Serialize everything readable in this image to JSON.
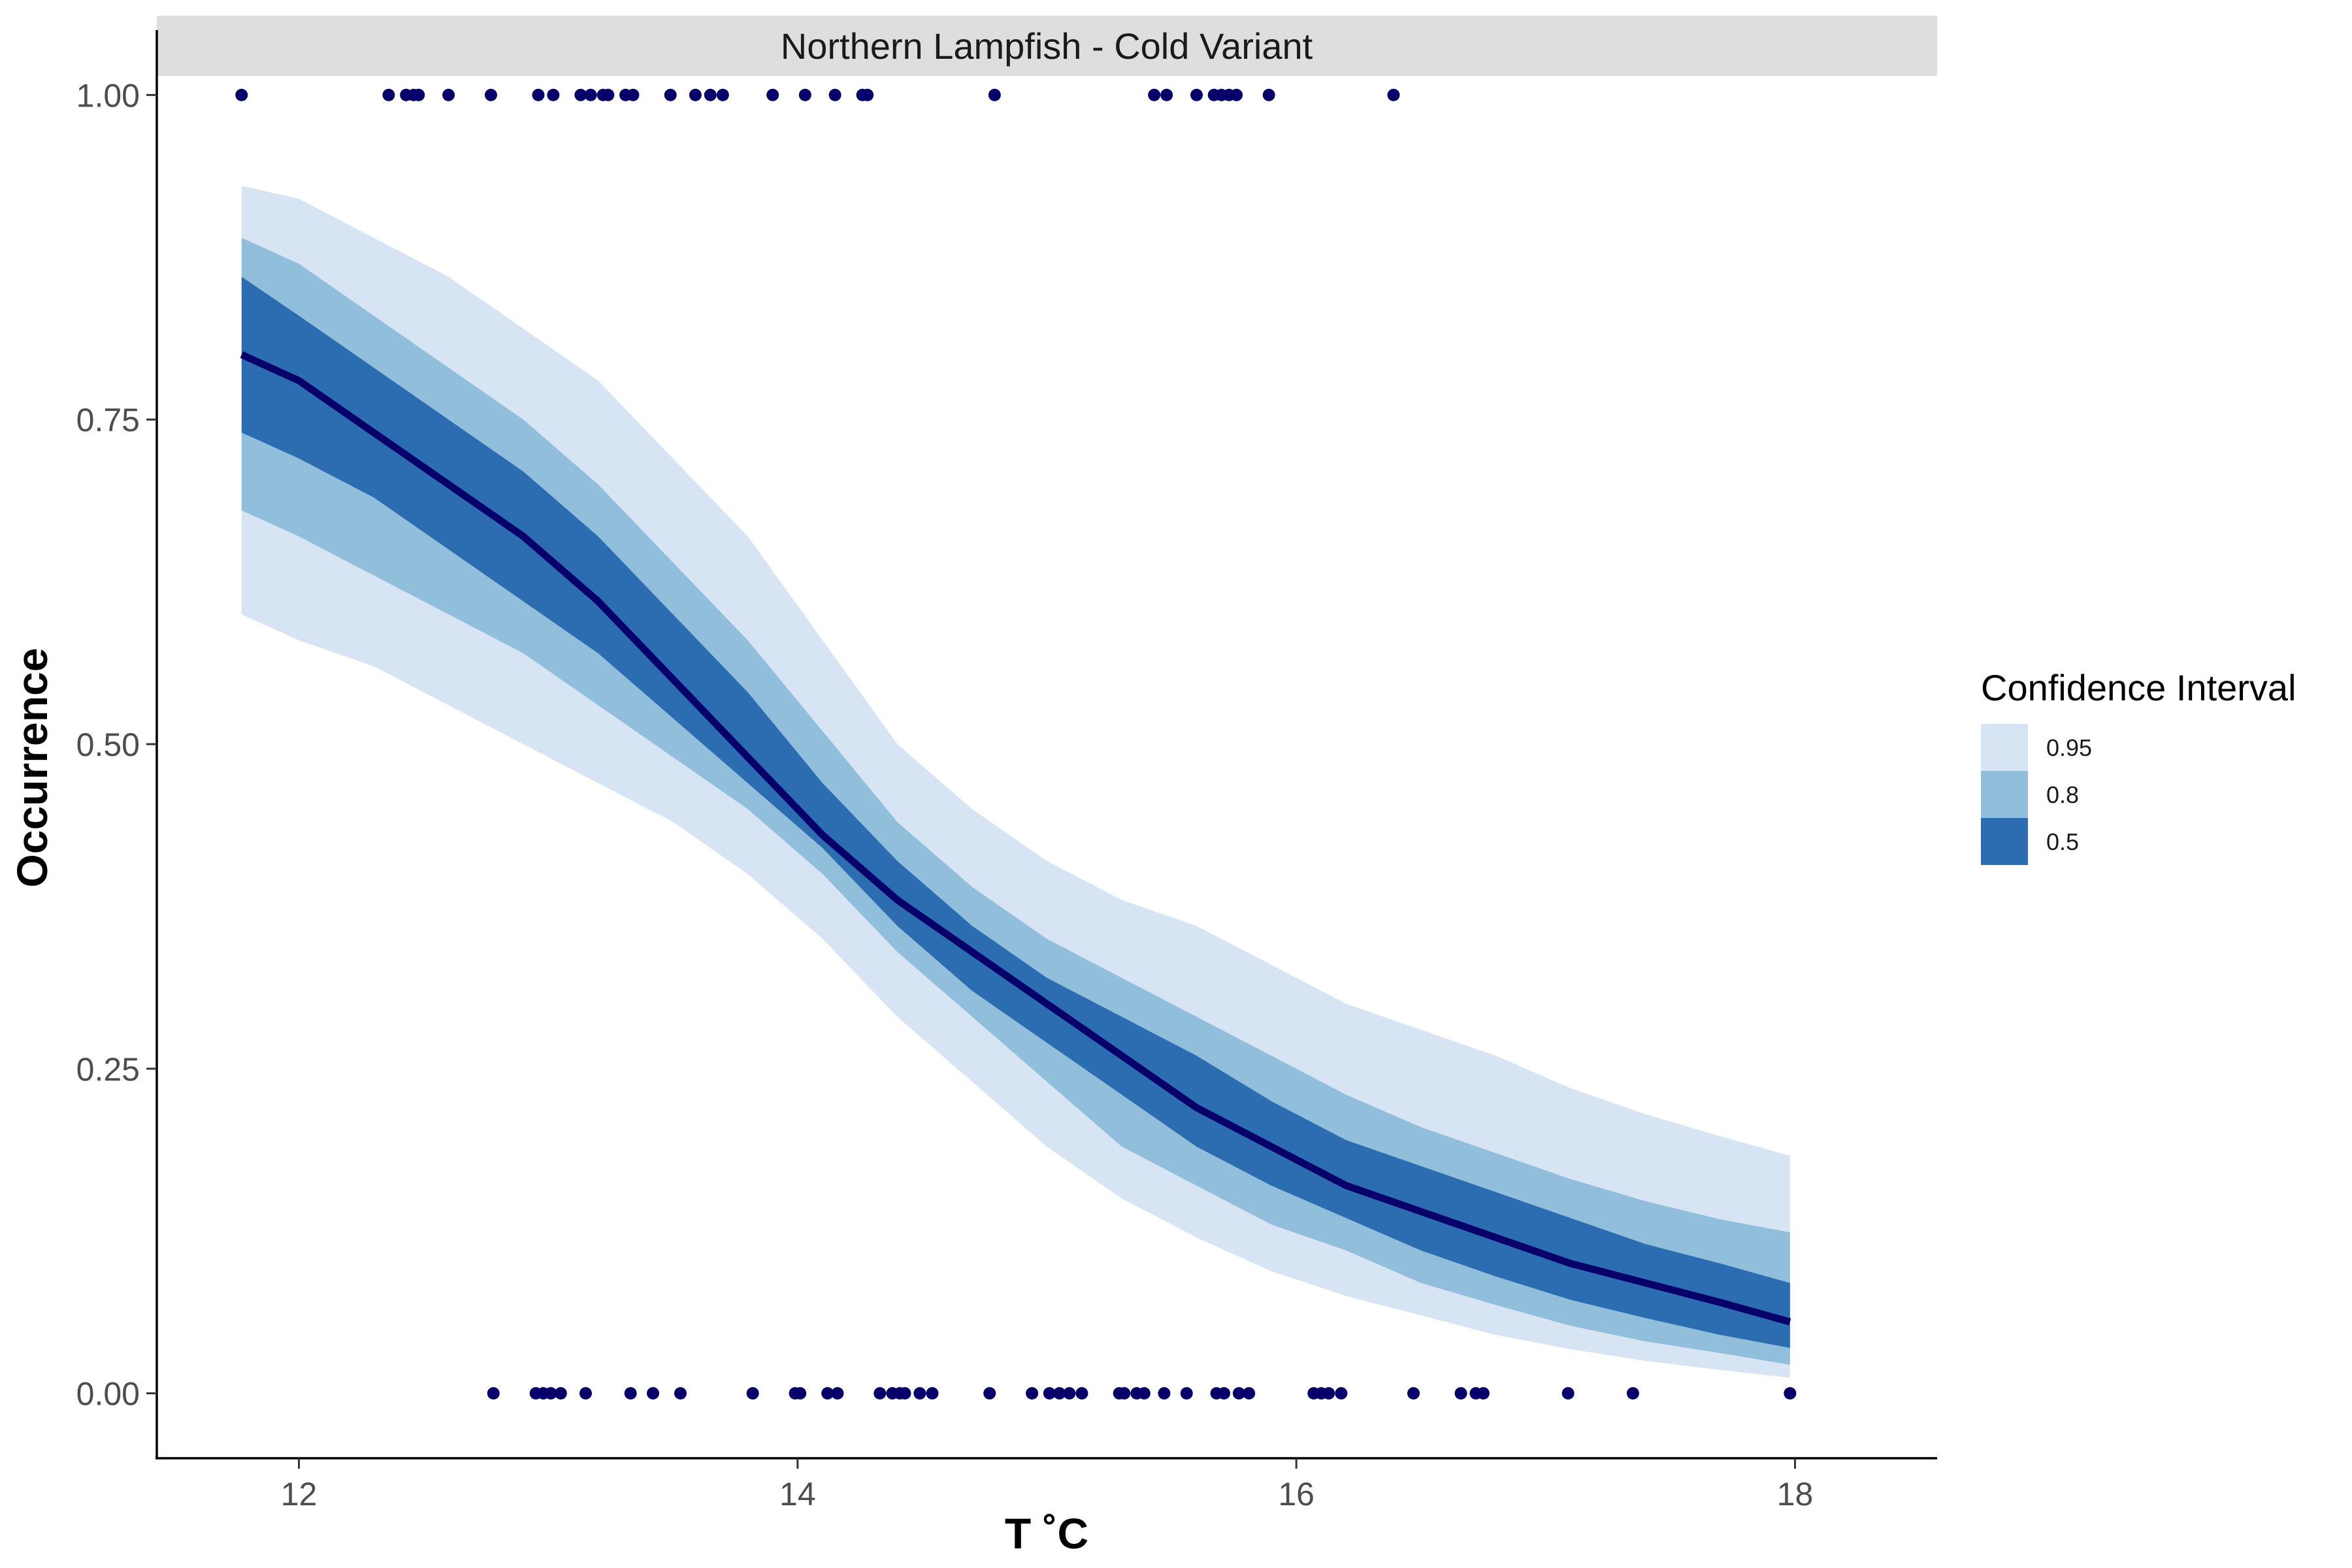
{
  "chart_data": {
    "type": "line",
    "facet_title": "Northern Lampfish - Cold Variant",
    "xlabel": "T ˚C",
    "ylabel": "Occurrence",
    "xlim": [
      11.43,
      18.57
    ],
    "ylim": [
      -0.05,
      1.05
    ],
    "x_ticks": [
      {
        "value": 12,
        "label": "12"
      },
      {
        "value": 14,
        "label": "14"
      },
      {
        "value": 16,
        "label": "16"
      },
      {
        "value": 18,
        "label": "18"
      }
    ],
    "y_ticks": [
      {
        "value": 0.0,
        "label": "0.00"
      },
      {
        "value": 0.25,
        "label": "0.25"
      },
      {
        "value": 0.5,
        "label": "0.50"
      },
      {
        "value": 0.75,
        "label": "0.75"
      },
      {
        "value": 1.0,
        "label": "1.00"
      }
    ],
    "grid": false,
    "legend": {
      "title": "Confidence Interval",
      "position": "right",
      "items": [
        {
          "label": "0.95",
          "color": "#d6e4f4"
        },
        {
          "label": "0.8",
          "color": "#91bedb"
        },
        {
          "label": "0.5",
          "color": "#2b6db0"
        }
      ]
    },
    "colors": {
      "ribbon_95": "#d6e4f4",
      "ribbon_80": "#91bedb",
      "ribbon_50": "#2b6db0",
      "line": "#08006a",
      "points": "#08006a",
      "strip_background": "#dedede"
    },
    "fit": {
      "x": [
        11.77,
        12.0,
        12.3,
        12.6,
        12.9,
        13.2,
        13.5,
        13.8,
        14.1,
        14.4,
        14.7,
        15.0,
        15.3,
        15.6,
        15.9,
        16.2,
        16.5,
        16.8,
        17.1,
        17.4,
        17.7,
        17.98
      ],
      "mean": [
        0.8,
        0.78,
        0.74,
        0.7,
        0.66,
        0.61,
        0.55,
        0.49,
        0.43,
        0.38,
        0.34,
        0.3,
        0.26,
        0.22,
        0.19,
        0.16,
        0.14,
        0.12,
        0.1,
        0.085,
        0.07,
        0.055
      ],
      "lower_95": [
        0.6,
        0.58,
        0.56,
        0.53,
        0.5,
        0.47,
        0.44,
        0.4,
        0.35,
        0.29,
        0.24,
        0.19,
        0.15,
        0.12,
        0.094,
        0.075,
        0.06,
        0.045,
        0.034,
        0.025,
        0.018,
        0.012
      ],
      "upper_95": [
        0.93,
        0.92,
        0.89,
        0.86,
        0.82,
        0.78,
        0.72,
        0.66,
        0.58,
        0.5,
        0.45,
        0.41,
        0.38,
        0.36,
        0.33,
        0.3,
        0.28,
        0.26,
        0.235,
        0.215,
        0.198,
        0.183
      ],
      "lower_80": [
        0.68,
        0.66,
        0.63,
        0.6,
        0.57,
        0.53,
        0.49,
        0.45,
        0.4,
        0.34,
        0.29,
        0.24,
        0.19,
        0.16,
        0.13,
        0.11,
        0.085,
        0.068,
        0.052,
        0.04,
        0.031,
        0.022
      ],
      "upper_80": [
        0.89,
        0.87,
        0.83,
        0.79,
        0.75,
        0.7,
        0.64,
        0.58,
        0.51,
        0.44,
        0.39,
        0.35,
        0.32,
        0.29,
        0.26,
        0.23,
        0.205,
        0.185,
        0.165,
        0.148,
        0.134,
        0.124
      ],
      "lower_50": [
        0.74,
        0.72,
        0.69,
        0.65,
        0.61,
        0.57,
        0.52,
        0.47,
        0.42,
        0.36,
        0.31,
        0.27,
        0.23,
        0.19,
        0.16,
        0.135,
        0.11,
        0.09,
        0.072,
        0.058,
        0.045,
        0.035
      ],
      "upper_50": [
        0.86,
        0.83,
        0.79,
        0.75,
        0.71,
        0.66,
        0.6,
        0.54,
        0.47,
        0.41,
        0.36,
        0.32,
        0.29,
        0.26,
        0.225,
        0.195,
        0.175,
        0.155,
        0.135,
        0.115,
        0.1,
        0.085
      ]
    },
    "points": {
      "occurrence_1": [
        11.77,
        12.36,
        12.43,
        12.46,
        12.48,
        12.6,
        12.77,
        12.96,
        13.02,
        13.13,
        13.17,
        13.22,
        13.24,
        13.31,
        13.34,
        13.49,
        13.59,
        13.65,
        13.7,
        13.9,
        14.03,
        14.15,
        14.26,
        14.28,
        14.79,
        15.43,
        15.48,
        15.6,
        15.67,
        15.7,
        15.73,
        15.76,
        15.89,
        16.39
      ],
      "occurrence_0": [
        12.78,
        12.95,
        12.98,
        13.01,
        13.05,
        13.15,
        13.33,
        13.42,
        13.53,
        13.82,
        13.99,
        14.01,
        14.12,
        14.16,
        14.33,
        14.38,
        14.41,
        14.43,
        14.49,
        14.54,
        14.77,
        14.94,
        15.01,
        15.05,
        15.09,
        15.14,
        15.29,
        15.31,
        15.36,
        15.39,
        15.47,
        15.56,
        15.68,
        15.71,
        15.77,
        15.81,
        16.07,
        16.1,
        16.13,
        16.18,
        16.47,
        16.66,
        16.72,
        16.75,
        17.09,
        17.35,
        17.98
      ]
    }
  }
}
